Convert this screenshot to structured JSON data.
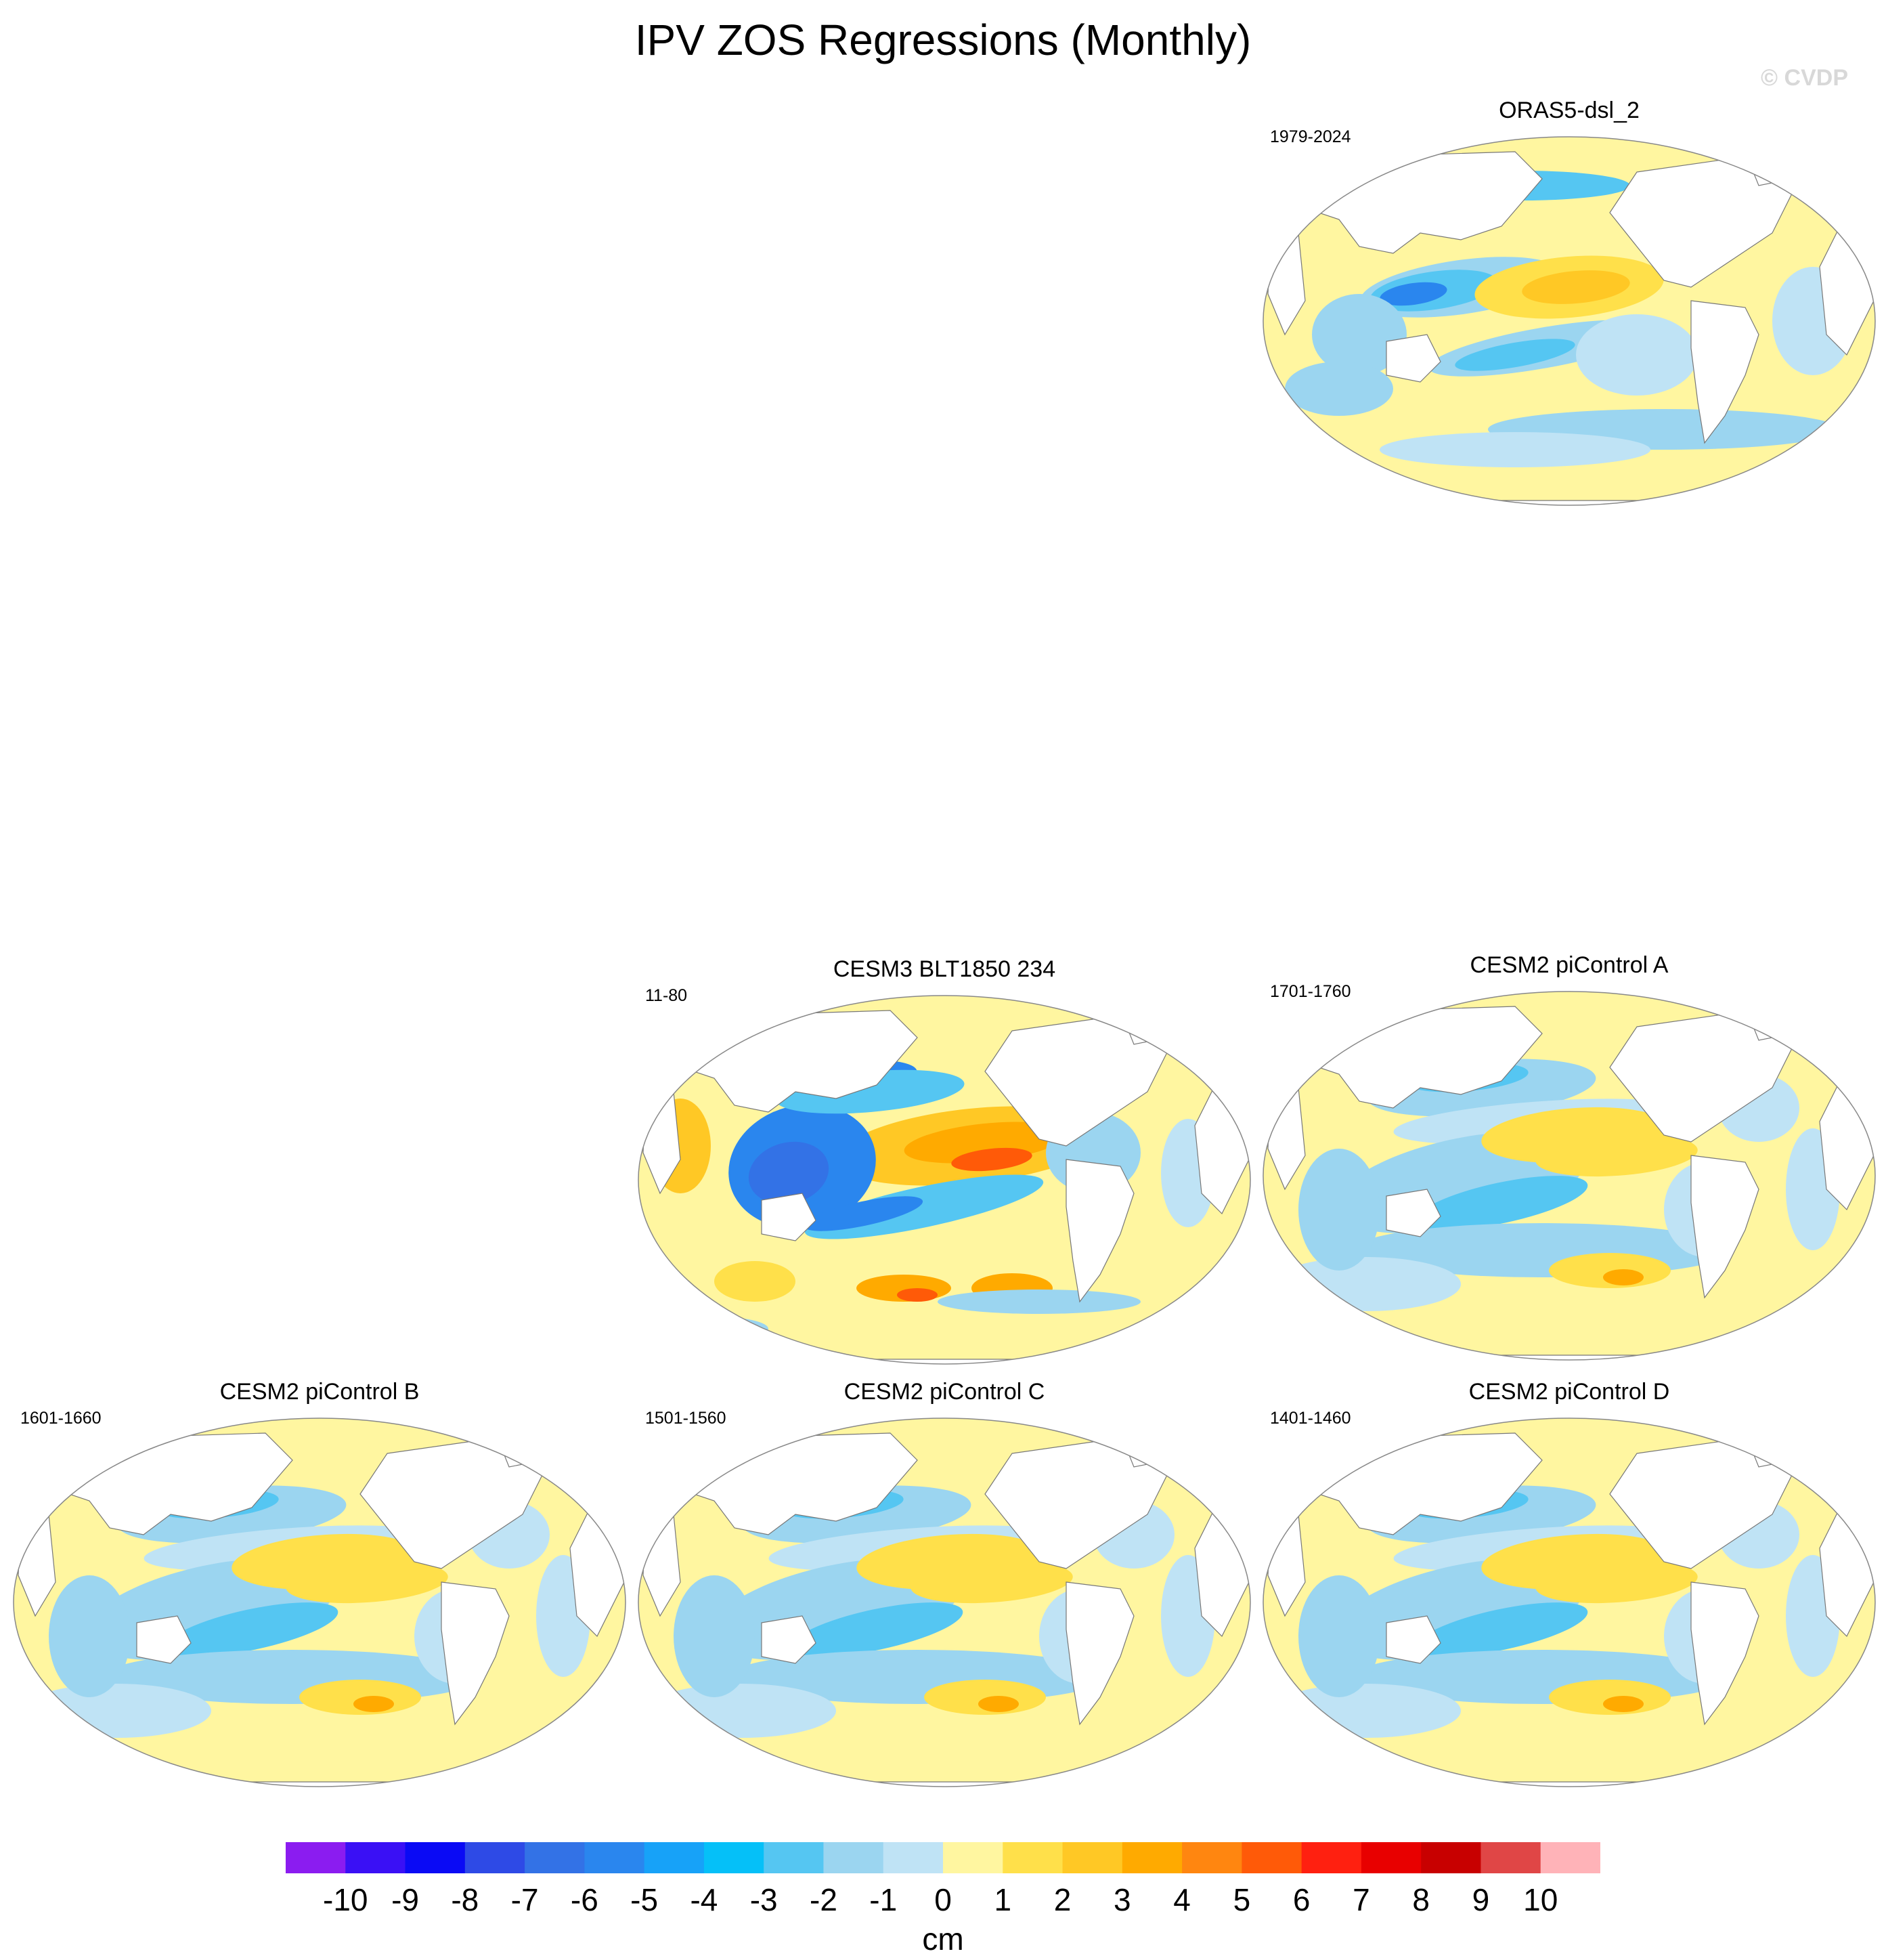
{
  "title": "IPV ZOS Regressions (Monthly)",
  "watermark": "© CVDP",
  "panels": [
    {
      "title": "ORAS5-dsl_2",
      "period": "1979-2024"
    },
    {
      "title": "CESM3 BLT1850 234",
      "period": "11-80"
    },
    {
      "title": "CESM2 piControl A",
      "period": "1701-1760"
    },
    {
      "title": "CESM2 piControl B",
      "period": "1601-1660"
    },
    {
      "title": "CESM2 piControl C",
      "period": "1501-1560"
    },
    {
      "title": "CESM2 piControl D",
      "period": "1401-1460"
    }
  ],
  "colorbar": {
    "labels": [
      "-10",
      "-9",
      "-8",
      "-7",
      "-6",
      "-5",
      "-4",
      "-3",
      "-2",
      "-1",
      "0",
      "1",
      "2",
      "3",
      "4",
      "5",
      "6",
      "7",
      "8",
      "9",
      "10"
    ],
    "colors": [
      "#8b1cf0",
      "#3a10f5",
      "#0a0af5",
      "#2e4ae6",
      "#3372e6",
      "#2a86ee",
      "#17a2f8",
      "#05c0f8",
      "#55c6f2",
      "#9bd5f0",
      "#bfe3f5",
      "#fff6a0",
      "#ffe04a",
      "#ffc825",
      "#ffaa00",
      "#ff8610",
      "#ff5a08",
      "#ff2010",
      "#e80000",
      "#c80000",
      "#e04646",
      "#ffb3b8"
    ],
    "unit": "cm"
  }
}
